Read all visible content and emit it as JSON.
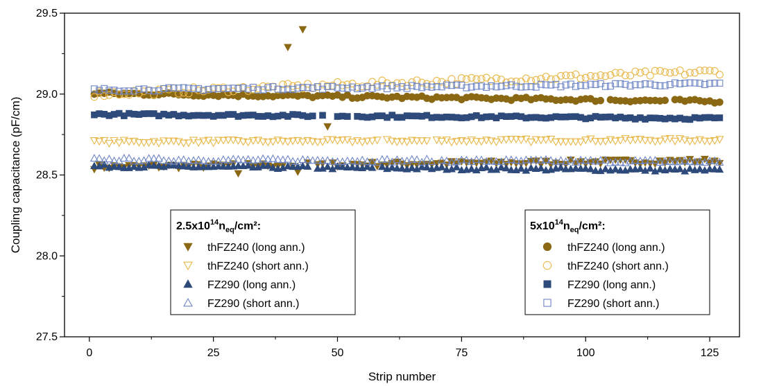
{
  "chart_data": {
    "type": "scatter",
    "title": "",
    "xlabel": "Strip number",
    "ylabel": "Coupling capacitance (pF/cm)",
    "xlim": [
      -5,
      131
    ],
    "ylim": [
      27.5,
      29.5
    ],
    "xticks": [
      0,
      25,
      50,
      75,
      100,
      125
    ],
    "xtick_labels": [
      "0",
      "25",
      "50",
      "75",
      "100",
      "125"
    ],
    "yticks": [
      27.5,
      28.0,
      28.5,
      29.0,
      29.5
    ],
    "ytick_labels": [
      "27.5",
      "28.0",
      "28.5",
      "29.0",
      "29.5"
    ],
    "grid": false,
    "colors": {
      "gold": "#8B6914",
      "light_gold": "#E8B84A",
      "navy": "#2E4A7A",
      "light_blue": "#6E86C6"
    },
    "legend_groups": [
      {
        "position": "bottom-left",
        "title_base": "2.5x10",
        "title_exp": "14",
        "title_sub": "eq",
        "title_tail": "/cm²:",
        "title_n": "n",
        "entries": [
          "thFZ240 (long ann.)",
          "thFZ240 (short ann.)",
          "FZ290 (long ann.)",
          "FZ290 (short ann.)"
        ]
      },
      {
        "position": "bottom-right",
        "title_base": "5x10",
        "title_exp": "14",
        "title_sub": "eq",
        "title_tail": "/cm²:",
        "title_n": "n",
        "entries": [
          "thFZ240 (long ann.)",
          "thFZ240 (short ann.)",
          "FZ290 (long ann.)",
          "FZ290 (short ann.)"
        ]
      }
    ],
    "series": [
      {
        "name": "thFZ240 (long ann.)",
        "group": "2.5x10^14",
        "marker": "triangle-down",
        "fill": "filled",
        "color": "#8B6914",
        "base": 28.55,
        "slope": 0.0003,
        "noise": 0.015,
        "gaps": [
          31,
          45,
          52
        ],
        "outliers": [
          [
            40,
            29.29
          ],
          [
            43,
            29.4
          ],
          [
            48,
            28.8
          ],
          [
            30,
            28.51
          ],
          [
            31,
            28.51
          ],
          [
            42,
            28.52
          ]
        ]
      },
      {
        "name": "thFZ240 (short ann.)",
        "group": "2.5x10^14",
        "marker": "triangle-down",
        "fill": "open",
        "color": "#E8B84A",
        "base": 28.705,
        "slope": 0.0001,
        "noise": 0.01,
        "gaps": [
          59,
          69
        ],
        "outliers": [
          [
            69,
            28.76
          ]
        ]
      },
      {
        "name": "FZ290 (long ann.)",
        "group": "2.5x10^14",
        "marker": "triangle-up",
        "fill": "filled",
        "color": "#2E4A7A",
        "base": 28.555,
        "slope": -0.0002,
        "noise": 0.01,
        "gaps": [
          45,
          58
        ],
        "outliers": []
      },
      {
        "name": "FZ290 (short ann.)",
        "group": "2.5x10^14",
        "marker": "triangle-up",
        "fill": "open",
        "color": "#6E86C6",
        "base": 28.595,
        "slope": -0.0001,
        "noise": 0.01,
        "gaps": [
          70
        ],
        "outliers": []
      },
      {
        "name": "thFZ240 (long ann.)",
        "group": "5x10^14",
        "marker": "circle",
        "fill": "filled",
        "color": "#8B6914",
        "base": 29.005,
        "slope": -0.0004,
        "noise": 0.01,
        "gaps": [
          104,
          117
        ],
        "outliers": []
      },
      {
        "name": "thFZ240 (short ann.)",
        "group": "5x10^14",
        "marker": "circle",
        "fill": "open",
        "color": "#E8B84A",
        "base": 29.0,
        "slope": 0.0011,
        "noise": 0.02,
        "gaps": [],
        "outliers": []
      },
      {
        "name": "FZ290 (long ann.)",
        "group": "5x10^14",
        "marker": "square",
        "fill": "filled",
        "color": "#2E4A7A",
        "base": 28.875,
        "slope": -0.0002,
        "noise": 0.008,
        "gaps": [
          46,
          48,
          49,
          53
        ],
        "outliers": []
      },
      {
        "name": "FZ290 (short ann.)",
        "group": "5x10^14",
        "marker": "square",
        "fill": "open",
        "color": "#6E86C6",
        "base": 29.025,
        "slope": 0.0003,
        "noise": 0.01,
        "gaps": [],
        "outliers": []
      }
    ],
    "strip_range": [
      1,
      127
    ]
  }
}
